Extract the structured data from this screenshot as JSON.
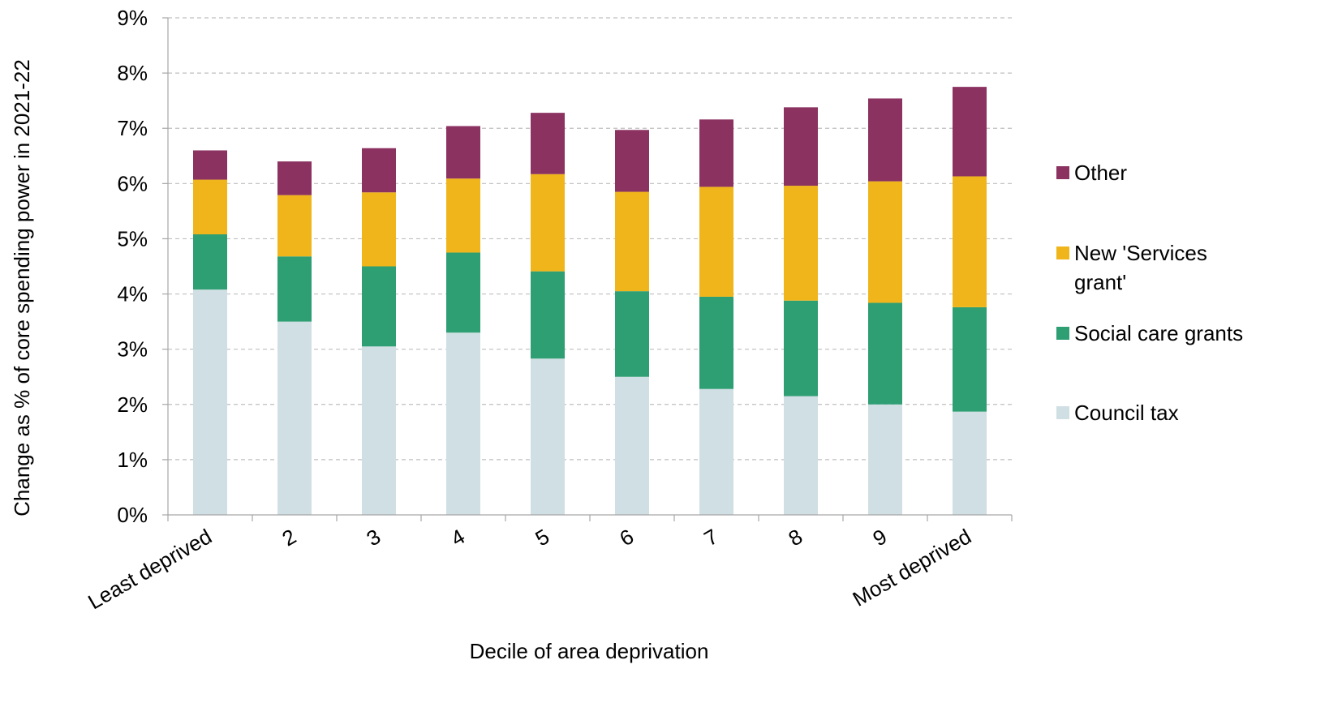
{
  "chart_data": {
    "type": "bar",
    "stacked": true,
    "xlabel": "Decile of area deprivation",
    "ylabel": "Change as % of core spending power in 2021-22",
    "ylim": [
      0,
      9
    ],
    "y_ticks": [
      "0%",
      "1%",
      "2%",
      "3%",
      "4%",
      "5%",
      "6%",
      "7%",
      "8%",
      "9%"
    ],
    "grid": true,
    "legend_position": "right",
    "categories": [
      "Least deprived",
      "2",
      "3",
      "4",
      "5",
      "6",
      "7",
      "8",
      "9",
      "Most deprived"
    ],
    "series": [
      {
        "name": "Council tax",
        "color": "#d0dfe3",
        "values": [
          4.08,
          3.5,
          3.05,
          3.3,
          2.83,
          2.5,
          2.28,
          2.15,
          2.0,
          1.87
        ]
      },
      {
        "name": "Social care grants",
        "color": "#2e9e73",
        "values": [
          1.0,
          1.18,
          1.45,
          1.45,
          1.58,
          1.55,
          1.67,
          1.73,
          1.84,
          1.89
        ]
      },
      {
        "name": "New 'Services grant'",
        "color": "#f0b51b",
        "values": [
          0.99,
          1.11,
          1.34,
          1.34,
          1.76,
          1.8,
          1.99,
          2.08,
          2.2,
          2.37
        ]
      },
      {
        "name": "Other",
        "color": "#8b3260",
        "values": [
          0.53,
          0.61,
          0.8,
          0.95,
          1.11,
          1.12,
          1.22,
          1.42,
          1.5,
          1.62
        ]
      }
    ],
    "legend_order": [
      "Other",
      "New 'Services grant'",
      "Social care grants",
      "Council tax"
    ],
    "legend_lines": {
      "Other": [
        "Other"
      ],
      "New 'Services grant'": [
        "New 'Services",
        "grant'"
      ],
      "Social care grants": [
        "Social care grants"
      ],
      "Council tax": [
        "Council tax"
      ]
    },
    "axis_color": "#a6a6a6",
    "grid_color": "#bfbfbf"
  }
}
